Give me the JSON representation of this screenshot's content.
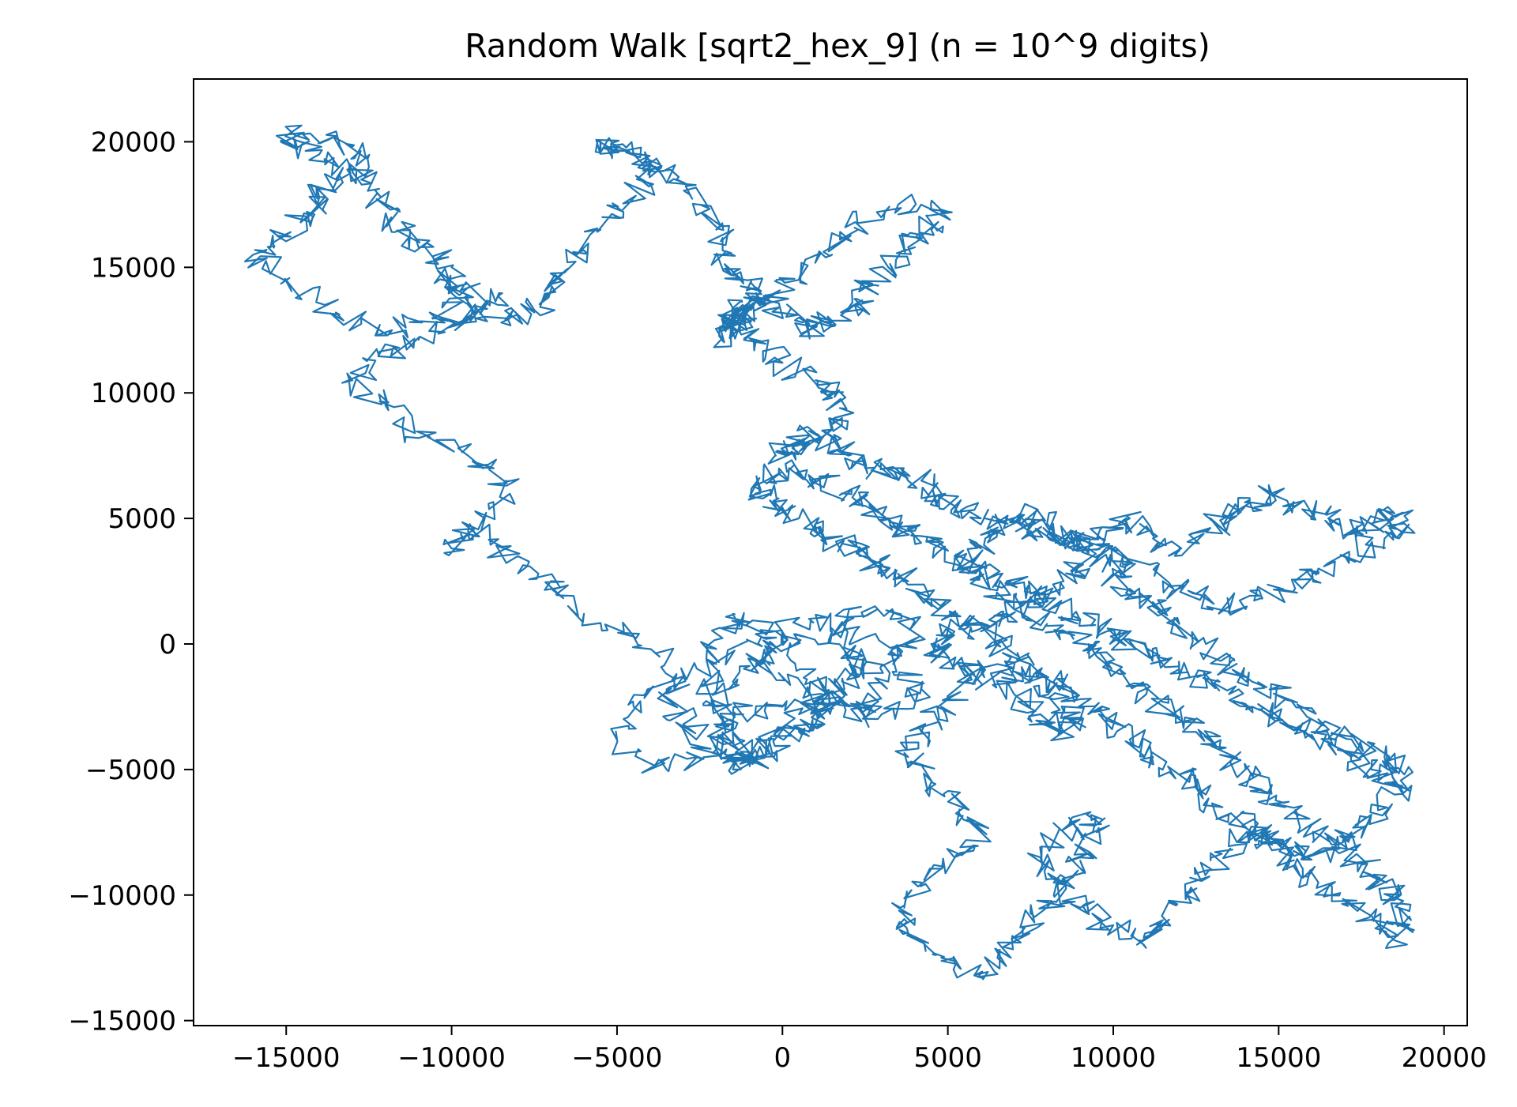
{
  "chart_data": {
    "type": "line",
    "title": "Random Walk [sqrt2_hex_9] (n = 10^9 digits)",
    "xlabel": "",
    "ylabel": "",
    "xlim": [
      -17800,
      20700
    ],
    "ylim": [
      -15200,
      22500
    ],
    "grid": false,
    "legend": "none",
    "x_ticks": [
      {
        "value": -15000,
        "label": "−15000"
      },
      {
        "value": -10000,
        "label": "−10000"
      },
      {
        "value": -5000,
        "label": "−5000"
      },
      {
        "value": 0,
        "label": "0"
      },
      {
        "value": 5000,
        "label": "5000"
      },
      {
        "value": 10000,
        "label": "10000"
      },
      {
        "value": 15000,
        "label": "15000"
      },
      {
        "value": 20000,
        "label": "20000"
      }
    ],
    "y_ticks": [
      {
        "value": -15000,
        "label": "−15000"
      },
      {
        "value": -10000,
        "label": "−10000"
      },
      {
        "value": -5000,
        "label": "−5000"
      },
      {
        "value": 0,
        "label": "0"
      },
      {
        "value": 5000,
        "label": "5000"
      },
      {
        "value": 10000,
        "label": "10000"
      },
      {
        "value": 15000,
        "label": "15000"
      },
      {
        "value": 20000,
        "label": "20000"
      }
    ],
    "series": [
      {
        "color": "#1f77b4",
        "x": [
          0,
          -800,
          1200,
          2500,
          3200,
          1500,
          -500,
          -1500,
          -2000,
          -1800,
          -1500,
          -1000,
          500,
          1500,
          1000,
          -200,
          -1500,
          -2000,
          -2200,
          -1500,
          -1000,
          -500,
          500,
          1500,
          2200,
          1800,
          2800,
          4000,
          3500,
          1800,
          0,
          -1500,
          -1800,
          -800,
          500,
          1500,
          3000,
          4200,
          3500,
          2200,
          800,
          -500,
          -2000,
          -3500,
          -3000,
          -2000,
          -3500,
          -5000,
          -4500,
          -3200,
          -4500,
          -6000,
          -7000,
          -8000,
          -9500,
          -10000,
          -9000,
          -8200,
          -9500,
          -11000,
          -12000,
          -13000,
          -12200,
          -11000,
          -9800,
          -8500,
          -9500,
          -10500,
          -11800,
          -13500,
          -15000,
          -16000,
          -15200,
          -14200,
          -14000,
          -13500,
          -12500,
          -13000,
          -14500,
          -15000,
          -14000,
          -13000,
          -12000,
          -11500,
          -11000,
          -10000,
          -10200,
          -9500,
          -8500,
          -7500,
          -7000,
          -6500,
          -5500,
          -4500,
          -3800,
          -4500,
          -5500,
          -5000,
          -4000,
          -3200,
          -2500,
          -2000,
          -1800,
          -1500,
          -800,
          -500,
          500,
          1000,
          1500,
          2200,
          2500,
          3200,
          3800,
          4500,
          4800,
          3500,
          2200,
          1500,
          500,
          -500,
          -1200,
          -1500,
          -1800,
          -1500,
          -1500,
          -1200,
          -1000,
          -800,
          0,
          1000,
          1500,
          1800,
          1200,
          500,
          -200,
          300,
          1200,
          2000,
          2500,
          3500,
          4200,
          4800,
          5200,
          6000,
          7000,
          7500,
          8500,
          9000,
          9800,
          10500,
          11200,
          12000,
          12800,
          13500,
          14000,
          14800,
          15500,
          16500,
          17200,
          17800,
          18500,
          18800,
          18200,
          17000,
          16200,
          15500,
          14500,
          13500,
          12500,
          11500,
          10500,
          10000,
          9000,
          8500,
          7500,
          6800,
          6000,
          5200,
          4500,
          5000,
          5800,
          7000,
          7800,
          8500,
          9000,
          8200,
          7500,
          6500,
          5500,
          4800,
          4200,
          3800,
          4500,
          5500,
          6000,
          5200,
          4200,
          3500,
          3800,
          4800,
          5800,
          6500,
          7200,
          8000,
          8500,
          9000,
          9500,
          9200,
          8500,
          7800,
          8200,
          9000,
          10000,
          10800,
          11500,
          12200,
          13000,
          13500,
          14200,
          15000,
          15800,
          16500,
          17200,
          17800,
          18500,
          18800,
          18200,
          17200,
          16200,
          15200,
          14200,
          13500,
          12800,
          12000,
          11200,
          10500,
          10000,
          9500,
          8800,
          8000,
          7200,
          6500,
          6000,
          5500,
          6200,
          7200,
          8000,
          8800,
          9500,
          10200,
          11000,
          11800,
          12500,
          13200,
          14000,
          14500,
          15200,
          16000,
          16800,
          17500,
          18000,
          18500,
          19000,
          18500,
          17800,
          17000,
          16200,
          15500,
          14800,
          14200,
          13500,
          12800,
          12000,
          11200,
          10500,
          9800,
          9000,
          8200,
          7500,
          6800,
          6000,
          5200,
          4500,
          3800,
          3200,
          2500,
          1800,
          1200,
          500,
          -200,
          -800,
          -500,
          200,
          1000,
          1800,
          2500,
          3200,
          3800,
          4500,
          5200,
          6000,
          6800,
          7500,
          8200,
          9000,
          9800,
          10500,
          11200,
          12000,
          12800,
          13500,
          14200,
          15000,
          15800,
          16500,
          17200,
          17800,
          18500
        ]
      }
    ]
  }
}
